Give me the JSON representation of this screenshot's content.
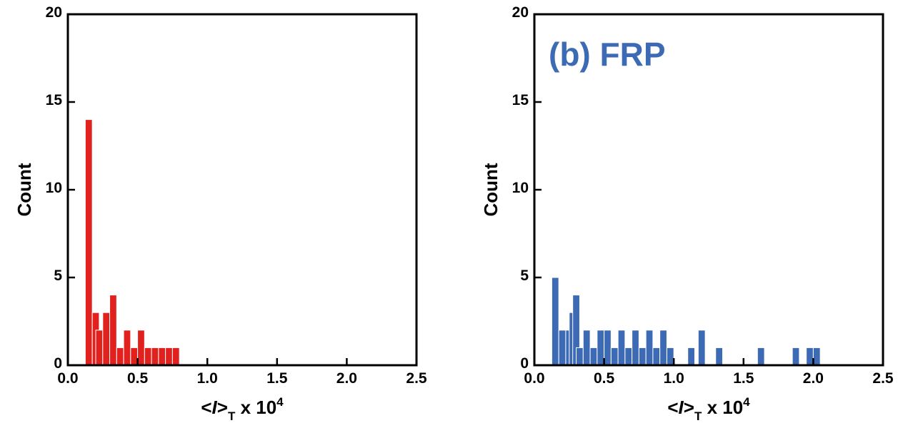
{
  "chart_data": [
    {
      "type": "bar",
      "title": "",
      "color": "#e0211d",
      "ylabel": "Count",
      "xlabel": {
        "lt": "<",
        "var": "I",
        "gt": ">",
        "sub": "T",
        "mid": " x 10",
        "sup": "4"
      },
      "xlim": [
        0,
        2.5
      ],
      "ylim": [
        0,
        20
      ],
      "xticks": [
        "0.0",
        "0.5",
        "1.0",
        "1.5",
        "2.0",
        "2.5"
      ],
      "yticks": [
        "0",
        "5",
        "10",
        "15",
        "20"
      ],
      "bin_width": 0.05,
      "bins": [
        {
          "x": 0.125,
          "count": 14
        },
        {
          "x": 0.175,
          "count": 3
        },
        {
          "x": 0.2,
          "count": 2
        },
        {
          "x": 0.25,
          "count": 3
        },
        {
          "x": 0.3,
          "count": 4
        },
        {
          "x": 0.35,
          "count": 1
        },
        {
          "x": 0.4,
          "count": 2
        },
        {
          "x": 0.45,
          "count": 1
        },
        {
          "x": 0.5,
          "count": 2
        },
        {
          "x": 0.55,
          "count": 1
        },
        {
          "x": 0.6,
          "count": 1
        },
        {
          "x": 0.65,
          "count": 1
        },
        {
          "x": 0.7,
          "count": 1
        },
        {
          "x": 0.75,
          "count": 1
        }
      ]
    },
    {
      "type": "bar",
      "title": "(b) FRP",
      "color": "#3d6ab5",
      "ylabel": "Count",
      "xlabel": {
        "lt": "<",
        "var": "I",
        "gt": ">",
        "sub": "T",
        "mid": " x 10",
        "sup": "4"
      },
      "xlim": [
        0,
        2.5
      ],
      "ylim": [
        0,
        20
      ],
      "xticks": [
        "0.0",
        "0.5",
        "1.0",
        "1.5",
        "2.0",
        "2.5"
      ],
      "yticks": [
        "0",
        "5",
        "10",
        "15",
        "20"
      ],
      "bin_width": 0.05,
      "bins": [
        {
          "x": 0.125,
          "count": 5
        },
        {
          "x": 0.175,
          "count": 2
        },
        {
          "x": 0.225,
          "count": 2
        },
        {
          "x": 0.25,
          "count": 3
        },
        {
          "x": 0.275,
          "count": 4
        },
        {
          "x": 0.3,
          "count": 1
        },
        {
          "x": 0.35,
          "count": 2
        },
        {
          "x": 0.4,
          "count": 1
        },
        {
          "x": 0.45,
          "count": 2
        },
        {
          "x": 0.5,
          "count": 2
        },
        {
          "x": 0.55,
          "count": 1
        },
        {
          "x": 0.6,
          "count": 2
        },
        {
          "x": 0.65,
          "count": 1
        },
        {
          "x": 0.7,
          "count": 2
        },
        {
          "x": 0.75,
          "count": 1
        },
        {
          "x": 0.8,
          "count": 2
        },
        {
          "x": 0.85,
          "count": 1
        },
        {
          "x": 0.9,
          "count": 2
        },
        {
          "x": 0.95,
          "count": 1
        },
        {
          "x": 1.1,
          "count": 1
        },
        {
          "x": 1.175,
          "count": 2
        },
        {
          "x": 1.3,
          "count": 1
        },
        {
          "x": 1.6,
          "count": 1
        },
        {
          "x": 1.85,
          "count": 1
        },
        {
          "x": 1.95,
          "count": 1
        },
        {
          "x": 2.0,
          "count": 1
        }
      ]
    }
  ]
}
